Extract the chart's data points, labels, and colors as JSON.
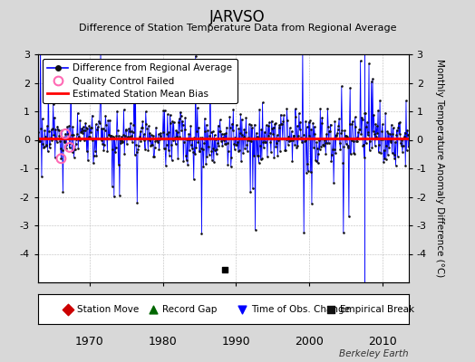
{
  "title": "JARVSO",
  "subtitle": "Difference of Station Temperature Data from Regional Average",
  "ylabel": "Monthly Temperature Anomaly Difference (°C)",
  "xlabel_years": [
    1970,
    1980,
    1990,
    2000,
    2010
  ],
  "ylim": [
    -5,
    3
  ],
  "yticks": [
    -4,
    -3,
    -2,
    -1,
    0,
    1,
    2,
    3
  ],
  "mean_bias": 0.05,
  "data_color": "#0000FF",
  "bias_color": "#FF0000",
  "qc_color": "#FF69B4",
  "bg_color": "#D8D8D8",
  "plot_bg_color": "#FFFFFF",
  "start_year": 1963.0,
  "end_year": 2013.5,
  "time_of_obs_change_year": 2007.5,
  "empirical_break_year": 1988.5,
  "watermark": "Berkeley Earth",
  "seed": 42,
  "n_points": 610
}
